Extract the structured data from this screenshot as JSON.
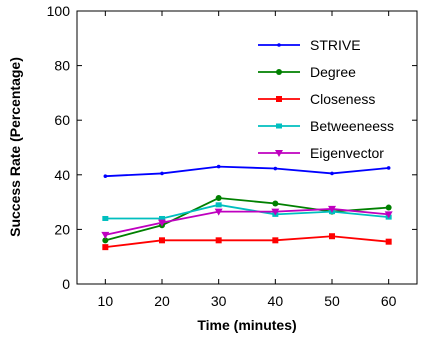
{
  "chart_data": {
    "type": "line",
    "title": "",
    "xlabel": "Time (minutes)",
    "ylabel": "Success Rate (Percentage)",
    "x": [
      10,
      20,
      30,
      40,
      50,
      60
    ],
    "xlim": [
      5,
      65
    ],
    "ylim": [
      0,
      100
    ],
    "xticks": [
      10,
      20,
      30,
      40,
      50,
      60
    ],
    "yticks": [
      0,
      20,
      40,
      60,
      80,
      100
    ],
    "grid": false,
    "legend_position": "top-right",
    "series": [
      {
        "name": "STRIVE",
        "color": "#0000ff",
        "marker": "dot",
        "values": [
          39.5,
          40.5,
          43.0,
          42.3,
          40.5,
          42.5
        ]
      },
      {
        "name": "Degree",
        "color": "#008000",
        "marker": "circle",
        "values": [
          16.0,
          21.5,
          31.5,
          29.5,
          26.5,
          28.0
        ]
      },
      {
        "name": "Closeness",
        "color": "#ff0000",
        "marker": "square",
        "values": [
          13.5,
          16.0,
          16.0,
          16.0,
          17.5,
          15.5
        ]
      },
      {
        "name": "Betweeneess",
        "color": "#00bfbf",
        "marker": "x",
        "values": [
          24.0,
          24.0,
          29.0,
          25.5,
          26.5,
          24.5
        ]
      },
      {
        "name": "Eigenvector",
        "color": "#bf00bf",
        "marker": "triangle",
        "values": [
          18.0,
          22.5,
          26.5,
          26.5,
          27.5,
          25.5
        ]
      }
    ]
  }
}
